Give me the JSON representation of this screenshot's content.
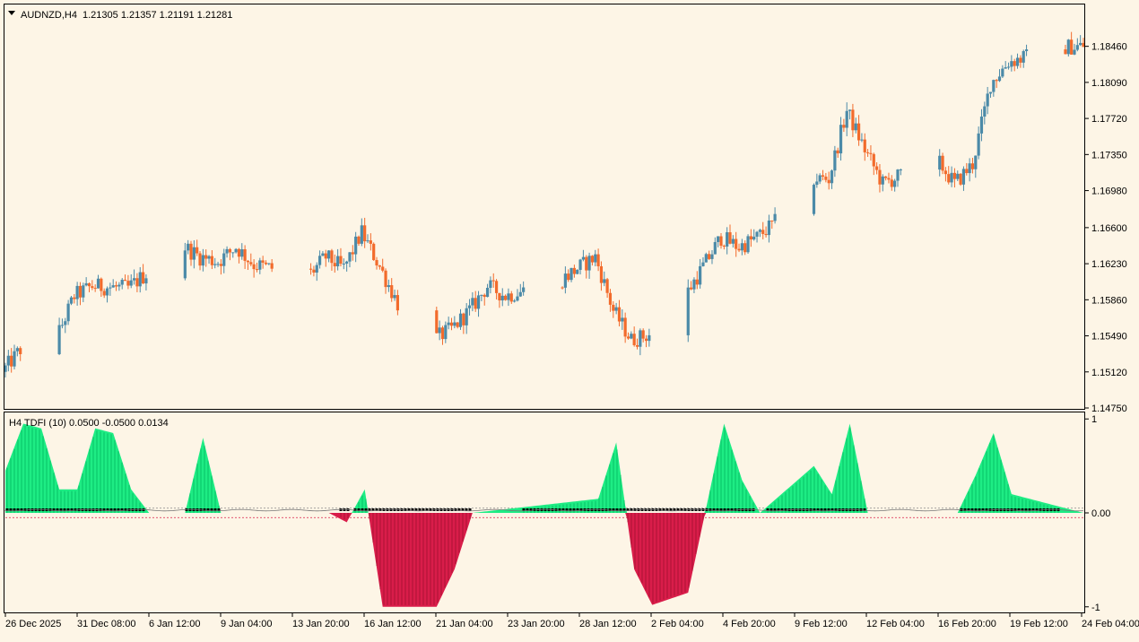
{
  "chart_data": [
    {
      "type": "candlestick",
      "symbol": "AUDNZD,H4",
      "ohlc_header": "1.21305 1.21357 1.21191 1.21281",
      "y_ticks": [
        "1.18460",
        "1.18090",
        "1.17720",
        "1.17350",
        "1.16980",
        "1.16600",
        "1.16230",
        "1.15860",
        "1.15490",
        "1.15120",
        "1.14750"
      ],
      "ylim": [
        1.1475,
        1.1888
      ],
      "colors": {
        "bull": "#4b8aa8",
        "bear": "#f26b2c",
        "background": "#fdf5e6"
      },
      "anchors": [
        [
          "2025-12-26",
          1.1512
        ],
        [
          "2025-12-27",
          1.1535
        ],
        [
          "2025-12-29",
          1.1546
        ],
        [
          "2025-12-30",
          1.159
        ],
        [
          "2025-12-31",
          1.16
        ],
        [
          "2026-01-02",
          1.1598
        ],
        [
          "2026-01-05",
          1.1642
        ],
        [
          "2026-01-06",
          1.163
        ],
        [
          "2026-01-07",
          1.1625
        ],
        [
          "2026-01-08",
          1.164
        ],
        [
          "2026-01-09",
          1.1622
        ],
        [
          "2026-01-12",
          1.161
        ],
        [
          "2026-01-13",
          1.163
        ],
        [
          "2026-01-14",
          1.1618
        ],
        [
          "2026-01-15",
          1.1655
        ],
        [
          "2026-01-16",
          1.162
        ],
        [
          "2026-01-17",
          1.1582
        ],
        [
          "2026-01-19",
          1.1545
        ],
        [
          "2026-01-20",
          1.1556
        ],
        [
          "2026-01-21",
          1.1575
        ],
        [
          "2026-01-22",
          1.16
        ],
        [
          "2026-01-23",
          1.159
        ],
        [
          "2026-01-26",
          1.1605
        ],
        [
          "2026-01-27",
          1.1618
        ],
        [
          "2026-01-28",
          1.163
        ],
        [
          "2026-01-29",
          1.1575
        ],
        [
          "2026-01-30",
          1.1545
        ],
        [
          "2026-01-31",
          1.155
        ],
        [
          "2026-02-02",
          1.159
        ],
        [
          "2026-02-03",
          1.162
        ],
        [
          "2026-02-04",
          1.165
        ],
        [
          "2026-02-05",
          1.164
        ],
        [
          "2026-02-06",
          1.165
        ],
        [
          "2026-02-07",
          1.1665
        ],
        [
          "2026-02-09",
          1.171
        ],
        [
          "2026-02-10",
          1.171
        ],
        [
          "2026-02-11",
          1.178
        ],
        [
          "2026-02-12",
          1.174
        ],
        [
          "2026-02-13",
          1.1705
        ],
        [
          "2026-02-16",
          1.173
        ],
        [
          "2026-02-17",
          1.1705
        ],
        [
          "2026-02-18",
          1.1725
        ],
        [
          "2026-02-19",
          1.1808
        ],
        [
          "2026-02-20",
          1.183
        ],
        [
          "2026-02-23",
          1.1845
        ],
        [
          "2026-02-24",
          1.1846
        ]
      ]
    },
    {
      "type": "histogram",
      "label": "H4 TDFI (10) 0.0500 -0.0500 0.0134",
      "y_ticks": [
        "1",
        "0.00",
        "-1"
      ],
      "levels": {
        "upper": 0.05,
        "lower": -0.05,
        "current": 0.0134
      },
      "ylim": [
        -1.05,
        1.05
      ],
      "colors": {
        "bull": "#1eec84",
        "bull_stripe": "#00b85f",
        "bear": "#d91d4a",
        "bear_stripe": "#a0102f",
        "dot": "#000000",
        "zero_line": "#888888"
      },
      "anchors": [
        [
          "2025-12-26",
          0.45
        ],
        [
          "2025-12-27",
          0.95
        ],
        [
          "2025-12-28",
          0.9
        ],
        [
          "2025-12-29",
          0.25
        ],
        [
          "2025-12-30",
          0.25
        ],
        [
          "2025-12-31",
          0.9
        ],
        [
          "2026-01-01",
          0.85
        ],
        [
          "2026-01-02",
          0.25
        ],
        [
          "2026-01-03",
          0.0
        ],
        [
          "2026-01-05",
          0.0
        ],
        [
          "2026-01-06",
          0.8
        ],
        [
          "2026-01-07",
          0.0
        ],
        [
          "2026-01-13",
          0.0
        ],
        [
          "2026-01-14",
          -0.1
        ],
        [
          "2026-01-15",
          0.25
        ],
        [
          "2026-01-16",
          -1.0
        ],
        [
          "2026-01-19",
          -1.0
        ],
        [
          "2026-01-20",
          -0.6
        ],
        [
          "2026-01-21",
          0.0
        ],
        [
          "2026-01-28",
          0.15
        ],
        [
          "2026-01-29",
          0.75
        ],
        [
          "2026-01-30",
          -0.6
        ],
        [
          "2026-01-31",
          -0.98
        ],
        [
          "2026-02-02",
          -0.85
        ],
        [
          "2026-02-03",
          0.05
        ],
        [
          "2026-02-04",
          0.95
        ],
        [
          "2026-02-05",
          0.35
        ],
        [
          "2026-02-06",
          0.0
        ],
        [
          "2026-02-09",
          0.5
        ],
        [
          "2026-02-10",
          0.2
        ],
        [
          "2026-02-11",
          0.95
        ],
        [
          "2026-02-12",
          0.0
        ],
        [
          "2026-02-17",
          0.0
        ],
        [
          "2026-02-18",
          0.4
        ],
        [
          "2026-02-19",
          0.85
        ],
        [
          "2026-02-20",
          0.2
        ],
        [
          "2026-02-23",
          0.05
        ],
        [
          "2026-02-24",
          0.0
        ]
      ]
    }
  ],
  "x_axis": {
    "labels": [
      "26 Dec 2025",
      "31 Dec 08:00",
      "6 Jan 12:00",
      "9 Jan 04:00",
      "13 Jan 20:00",
      "16 Jan 12:00",
      "21 Jan 04:00",
      "23 Jan 20:00",
      "28 Jan 12:00",
      "2 Feb 04:00",
      "4 Feb 20:00",
      "9 Feb 12:00",
      "12 Feb 04:00",
      "16 Feb 20:00",
      "19 Feb 12:00",
      "24 Feb 04:00"
    ]
  }
}
